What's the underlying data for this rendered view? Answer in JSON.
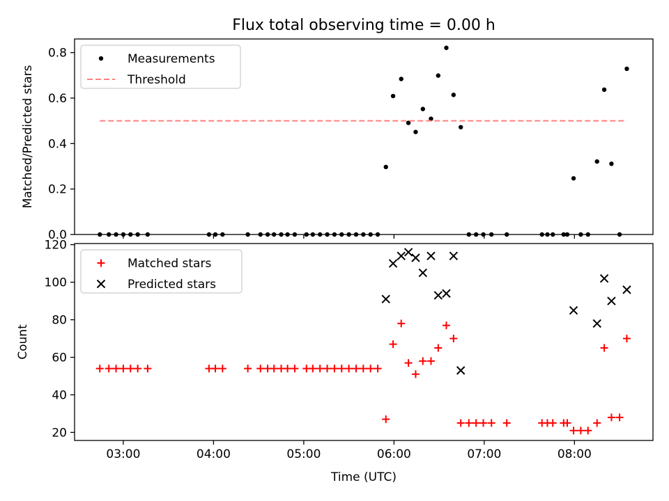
{
  "figure": {
    "title": "Flux total observing time = 0.00 h"
  },
  "chart_data": [
    {
      "type": "scatter",
      "title": "Flux total observing time = 0.00 h",
      "xlabel": "",
      "ylabel": "Matched/Predicted stars",
      "xlim": [
        2.46,
        8.87
      ],
      "ylim": [
        0,
        0.86
      ],
      "xticks": [
        3,
        4,
        5,
        6,
        7,
        8
      ],
      "xtick_labels": [
        "03:00",
        "04:00",
        "05:00",
        "06:00",
        "07:00",
        "08:00"
      ],
      "yticks": [
        0,
        0.2,
        0.4,
        0.6,
        0.8
      ],
      "ytick_labels": [
        "0.0",
        "0.2",
        "0.4",
        "0.6",
        "0.8"
      ],
      "legend": {
        "position": "top-left",
        "entries": [
          "Measurements",
          "Threshold"
        ]
      },
      "series": [
        {
          "name": "Measurements",
          "marker": "dot",
          "color": "#000000",
          "x": [
            2.74,
            2.84,
            2.92,
            3.0,
            3.08,
            3.16,
            3.27,
            3.95,
            4.02,
            4.1,
            4.38,
            4.52,
            4.6,
            4.67,
            4.75,
            4.82,
            4.9,
            5.03,
            5.1,
            5.18,
            5.26,
            5.34,
            5.42,
            5.5,
            5.58,
            5.66,
            5.74,
            5.82,
            5.91,
            5.99,
            6.08,
            6.16,
            6.24,
            6.32,
            6.41,
            6.49,
            6.58,
            6.66,
            6.74,
            6.83,
            6.91,
            6.99,
            7.08,
            7.25,
            7.64,
            7.7,
            7.76,
            7.88,
            7.92,
            7.99,
            8.07,
            8.15,
            8.25,
            8.33,
            8.41,
            8.5,
            8.58
          ],
          "y": [
            0,
            0,
            0,
            0,
            0,
            0,
            0,
            0,
            0,
            0,
            0,
            0,
            0,
            0,
            0,
            0,
            0,
            0,
            0,
            0,
            0,
            0,
            0,
            0,
            0,
            0,
            0,
            0,
            0.297,
            0.609,
            0.684,
            0.491,
            0.451,
            0.552,
            0.509,
            0.699,
            0.821,
            0.614,
            0.472,
            0,
            0,
            0,
            0,
            0,
            0,
            0,
            0,
            0,
            0,
            0.247,
            0,
            0,
            0.321,
            0.637,
            0.311,
            0,
            0.729
          ]
        },
        {
          "name": "Threshold",
          "style": "dashed",
          "color": "#ff7f7f",
          "x": [
            2.74,
            8.58
          ],
          "y": [
            0.5,
            0.5
          ]
        }
      ]
    },
    {
      "type": "scatter",
      "title": "",
      "xlabel": "Time (UTC)",
      "ylabel": "Count",
      "xlim": [
        2.46,
        8.87
      ],
      "ylim": [
        15.7,
        120.6
      ],
      "xticks": [
        3,
        4,
        5,
        6,
        7,
        8
      ],
      "xtick_labels": [
        "03:00",
        "04:00",
        "05:00",
        "06:00",
        "07:00",
        "08:00"
      ],
      "yticks": [
        20,
        40,
        60,
        80,
        100,
        120
      ],
      "ytick_labels": [
        "20",
        "40",
        "60",
        "80",
        "100",
        "120"
      ],
      "legend": {
        "position": "top-left",
        "entries": [
          "Matched stars",
          "Predicted stars"
        ]
      },
      "series": [
        {
          "name": "Matched stars",
          "marker": "plus",
          "color": "#ff0000",
          "x": [
            2.74,
            2.84,
            2.92,
            3.0,
            3.08,
            3.16,
            3.27,
            3.95,
            4.02,
            4.1,
            4.38,
            4.52,
            4.6,
            4.67,
            4.75,
            4.82,
            4.9,
            5.03,
            5.1,
            5.18,
            5.26,
            5.34,
            5.42,
            5.5,
            5.58,
            5.66,
            5.74,
            5.82,
            5.91,
            5.99,
            6.08,
            6.16,
            6.24,
            6.32,
            6.41,
            6.49,
            6.58,
            6.66,
            6.74,
            6.83,
            6.91,
            6.99,
            7.08,
            7.25,
            7.64,
            7.7,
            7.76,
            7.88,
            7.92,
            7.99,
            8.07,
            8.15,
            8.25,
            8.33,
            8.41,
            8.5,
            8.58
          ],
          "y": [
            54,
            54,
            54,
            54,
            54,
            54,
            54,
            54,
            54,
            54,
            54,
            54,
            54,
            54,
            54,
            54,
            54,
            54,
            54,
            54,
            54,
            54,
            54,
            54,
            54,
            54,
            54,
            54,
            27,
            67,
            78,
            57,
            51,
            58,
            58,
            65,
            77,
            70,
            25,
            25,
            25,
            25,
            25,
            25,
            25,
            25,
            25,
            25,
            25,
            21,
            21,
            21,
            25,
            65,
            28,
            28,
            70
          ]
        },
        {
          "name": "Predicted stars",
          "marker": "x",
          "color": "#000000",
          "x": [
            5.91,
            5.99,
            6.08,
            6.16,
            6.24,
            6.32,
            6.41,
            6.49,
            6.58,
            6.66,
            6.74,
            7.99,
            8.25,
            8.33,
            8.41,
            8.58
          ],
          "y": [
            91,
            110,
            114,
            116,
            113,
            105,
            114,
            93,
            94,
            114,
            53,
            85,
            78,
            102,
            90,
            96
          ]
        }
      ]
    }
  ]
}
